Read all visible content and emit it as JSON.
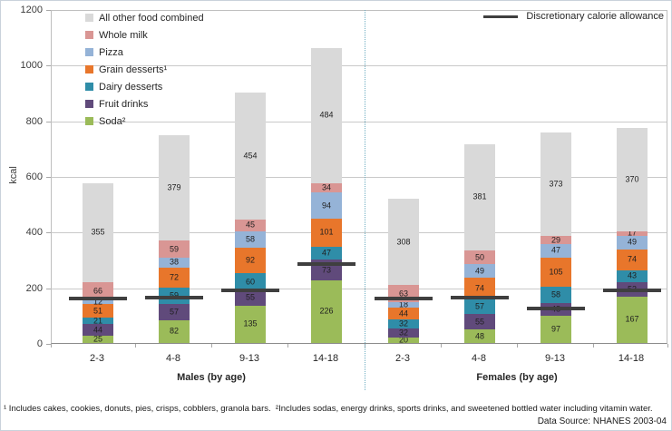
{
  "chart_data": {
    "type": "bar",
    "stacked": true,
    "ylabel": "kcal",
    "ylim": [
      0,
      1200
    ],
    "ytick_step": 200,
    "grid": true,
    "legend_position": "top-left",
    "categories": [
      "2-3",
      "4-8",
      "9-13",
      "14-18",
      "2-3",
      "4-8",
      "9-13",
      "14-18"
    ],
    "groups": [
      {
        "label": "Males (by age)",
        "span": [
          0,
          3
        ]
      },
      {
        "label": "Females (by age)",
        "span": [
          4,
          7
        ]
      }
    ],
    "series": [
      {
        "name": "Soda²",
        "color": "#9bbb59",
        "values": [
          25,
          82,
          135,
          226,
          20,
          48,
          97,
          167
        ]
      },
      {
        "name": "Fruit drinks",
        "color": "#604a7b",
        "values": [
          44,
          57,
          55,
          73,
          32,
          55,
          48,
          52
        ]
      },
      {
        "name": "Dairy desserts",
        "color": "#2f8da8",
        "values": [
          21,
          59,
          60,
          47,
          32,
          57,
          58,
          43
        ]
      },
      {
        "name": "Grain desserts¹",
        "color": "#e8762b",
        "values": [
          51,
          72,
          92,
          101,
          44,
          74,
          105,
          74
        ]
      },
      {
        "name": "Pizza",
        "color": "#95b3d7",
        "values": [
          12,
          38,
          58,
          94,
          18,
          49,
          47,
          49
        ]
      },
      {
        "name": "Whole milk",
        "color": "#d99694",
        "values": [
          66,
          59,
          45,
          34,
          63,
          50,
          29,
          17
        ]
      },
      {
        "name": "All other food combined",
        "color": "#d9d9d9",
        "values": [
          355,
          379,
          454,
          484,
          308,
          381,
          373,
          370
        ]
      }
    ],
    "reference_line": {
      "label": "Discretionary calorie allowance",
      "color": "#3f3f3f",
      "values": [
        165,
        171,
        195,
        290,
        165,
        171,
        132,
        195
      ]
    },
    "separator_color": "#6faec2"
  },
  "footnote": "¹ Includes cakes, cookies, donuts, pies, crisps, cobblers, granola bars.  ²Includes sodas, energy drinks, sports drinks, and sweetened bottled water including vitamin water.",
  "source": "Data Source: NHANES 2003-04"
}
